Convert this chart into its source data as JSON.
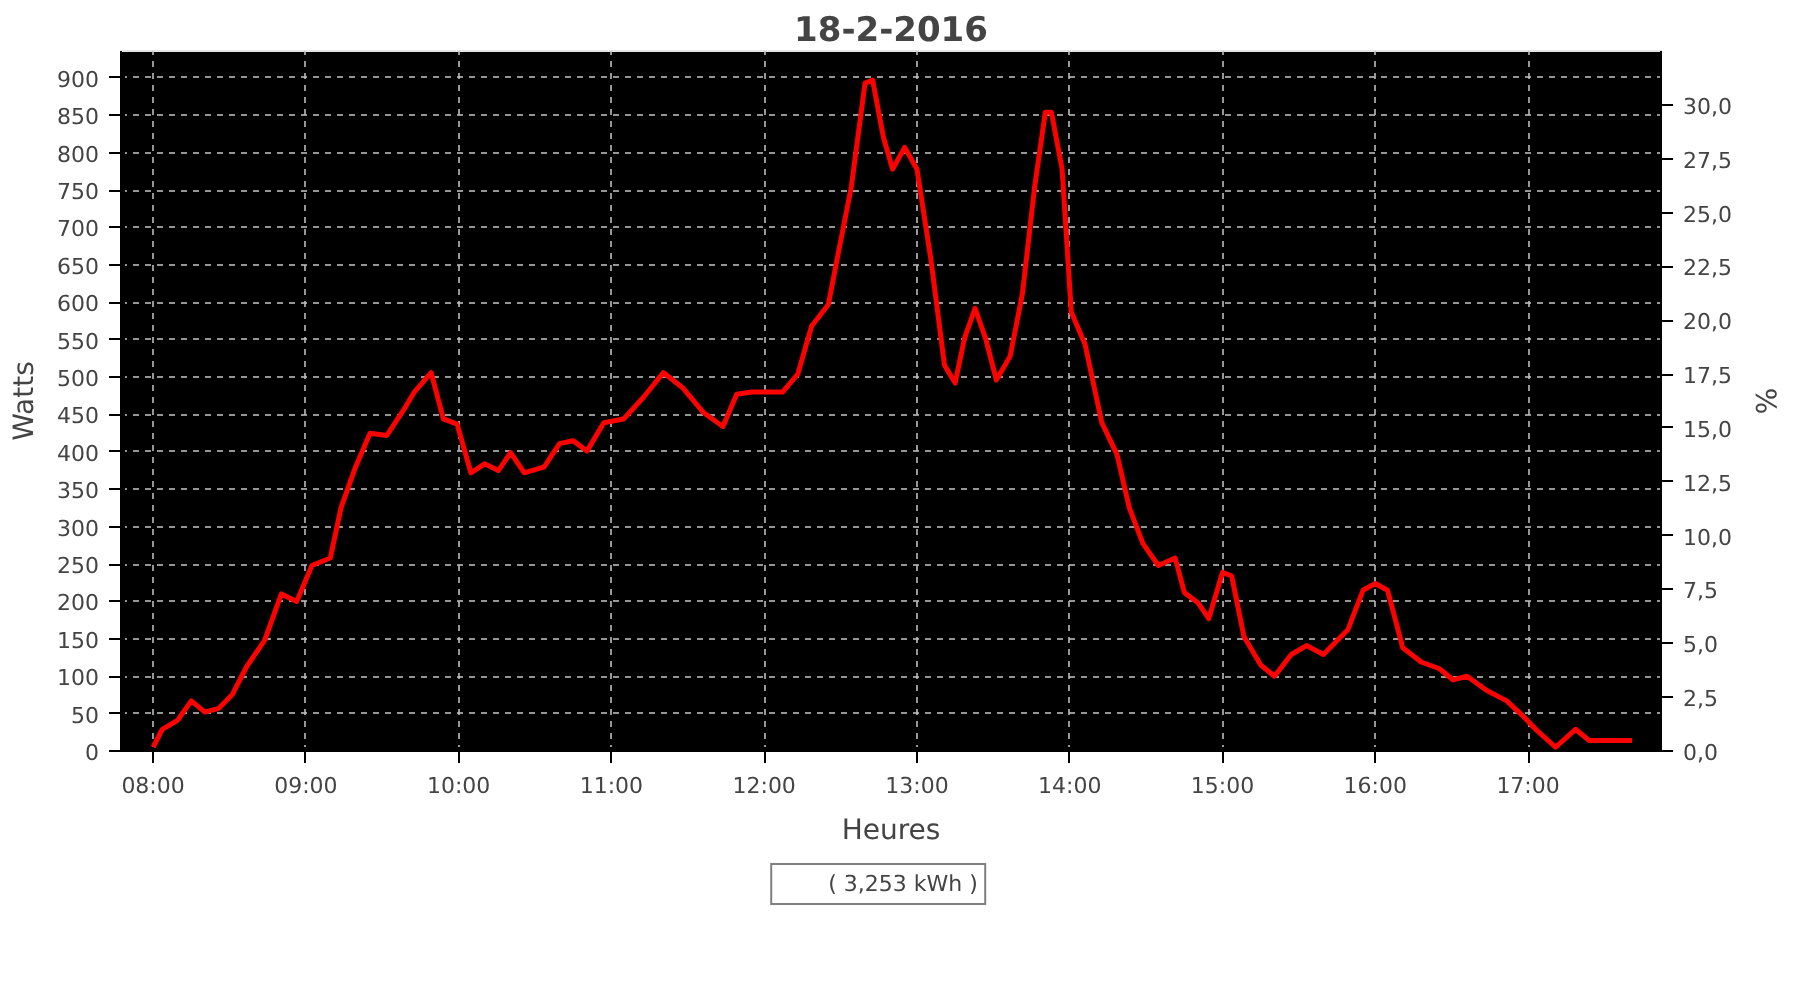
{
  "chart_data": {
    "type": "line",
    "title": "18-2-2016",
    "xlabel": "Heures",
    "ylabel": "Watts",
    "y2label": "%",
    "xlim": [
      7.79,
      17.87
    ],
    "xticks": [
      {
        "value": 8,
        "label": "08:00"
      },
      {
        "value": 9,
        "label": "09:00"
      },
      {
        "value": 10,
        "label": "10:00"
      },
      {
        "value": 11,
        "label": "11:00"
      },
      {
        "value": 12,
        "label": "12:00"
      },
      {
        "value": 13,
        "label": "13:00"
      },
      {
        "value": 14,
        "label": "14:00"
      },
      {
        "value": 15,
        "label": "15:00"
      },
      {
        "value": 16,
        "label": "16:00"
      },
      {
        "value": 17,
        "label": "17:00"
      }
    ],
    "ylim": [
      0,
      936
    ],
    "yticks": [
      0,
      50,
      100,
      150,
      200,
      250,
      300,
      350,
      400,
      450,
      500,
      550,
      600,
      650,
      700,
      750,
      800,
      850,
      900
    ],
    "y2lim": [
      0,
      32.5
    ],
    "y2ticks": [
      {
        "value": 0,
        "label": "0,0"
      },
      {
        "value": 2.5,
        "label": "2,5"
      },
      {
        "value": 5,
        "label": "5,0"
      },
      {
        "value": 7.5,
        "label": "7,5"
      },
      {
        "value": 10,
        "label": "10,0"
      },
      {
        "value": 12.5,
        "label": "12,5"
      },
      {
        "value": 15,
        "label": "15,0"
      },
      {
        "value": 17.5,
        "label": "17,5"
      },
      {
        "value": 20,
        "label": "20,0"
      },
      {
        "value": 22.5,
        "label": "22,5"
      },
      {
        "value": 25,
        "label": "25,0"
      },
      {
        "value": 27.5,
        "label": "27,5"
      },
      {
        "value": 30,
        "label": "30,0"
      }
    ],
    "x": [
      8.0,
      8.06,
      8.16,
      8.25,
      8.34,
      8.43,
      8.52,
      8.61,
      8.73,
      8.84,
      8.94,
      9.04,
      9.16,
      9.23,
      9.32,
      9.42,
      9.53,
      9.64,
      9.71,
      9.82,
      9.9,
      9.99,
      10.08,
      10.17,
      10.26,
      10.34,
      10.43,
      10.56,
      10.66,
      10.75,
      10.84,
      10.95,
      11.08,
      11.21,
      11.34,
      11.47,
      11.6,
      11.73,
      11.82,
      11.92,
      12.12,
      12.22,
      12.31,
      12.42,
      12.49,
      12.57,
      12.66,
      12.71,
      12.78,
      12.84,
      12.92,
      13.0,
      13.09,
      13.18,
      13.25,
      13.31,
      13.38,
      13.45,
      13.52,
      13.61,
      13.69,
      13.77,
      13.84,
      13.88,
      13.95,
      14.01,
      14.1,
      14.21,
      14.31,
      14.39,
      14.48,
      14.58,
      14.69,
      14.75,
      14.84,
      14.91,
      15.0,
      15.06,
      15.14,
      15.25,
      15.34,
      15.45,
      15.55,
      15.66,
      15.82,
      15.92,
      16.0,
      16.08,
      16.18,
      16.3,
      16.42,
      16.51,
      16.6,
      16.73,
      16.86,
      16.96,
      17.05,
      17.18,
      17.31,
      17.4,
      17.68
    ],
    "series": [
      {
        "name": "( 3,253 kWh )",
        "color": "#ff0000",
        "values": [
          5,
          29,
          41,
          67,
          52,
          57,
          76,
          112,
          148,
          210,
          200,
          248,
          258,
          325,
          377,
          425,
          422,
          456,
          480,
          506,
          444,
          437,
          372,
          384,
          375,
          399,
          372,
          380,
          411,
          415,
          401,
          439,
          444,
          473,
          506,
          485,
          453,
          434,
          477,
          480,
          480,
          504,
          568,
          597,
          671,
          754,
          893,
          897,
          821,
          778,
          807,
          778,
          659,
          516,
          492,
          551,
          592,
          551,
          496,
          528,
          611,
          754,
          854,
          854,
          778,
          587,
          544,
          439,
          396,
          325,
          277,
          248,
          258,
          212,
          198,
          177,
          239,
          234,
          153,
          115,
          100,
          129,
          141,
          129,
          162,
          215,
          224,
          215,
          138,
          119,
          110,
          95,
          100,
          81,
          67,
          48,
          29,
          5,
          29,
          14,
          14
        ]
      }
    ],
    "grid": true,
    "legend": "bottom",
    "line_style": "solid",
    "marker": "none"
  }
}
